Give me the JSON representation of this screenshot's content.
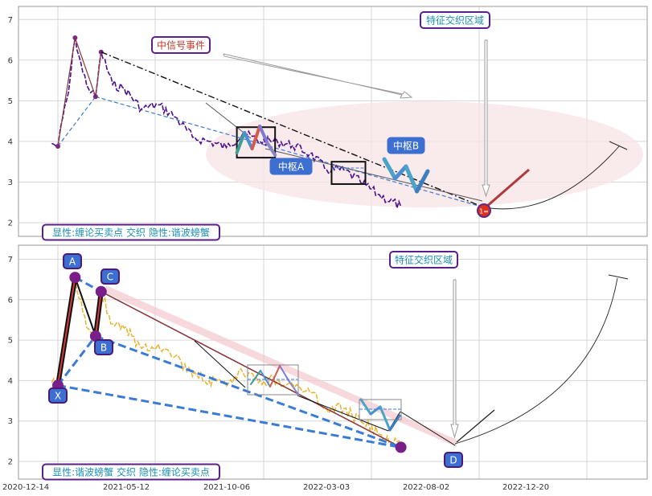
{
  "chart_data": [
    {
      "type": "line",
      "panel": "top",
      "ylim": [
        1.6,
        7.35
      ],
      "yticks": [
        "2",
        "3",
        "4",
        "5",
        "6",
        "7"
      ],
      "grid": true,
      "annotations": {
        "signal_event": "中信号事件",
        "feature_zone": "特征交织区域",
        "zhongshu_a": "中枢A",
        "zhongshu_b": "中枢B",
        "marker": "1=",
        "legend": "显性:缠论买卖点 交织 隐性:谐波螃蟹"
      },
      "price_series": [
        [
          "2020-12-21",
          3.95
        ],
        [
          "2021-01-01",
          3.88
        ],
        [
          "2021-01-10",
          4.6
        ],
        [
          "2021-01-20",
          5.2
        ],
        [
          "2021-02-01",
          6.55
        ],
        [
          "2021-02-15",
          5.7
        ],
        [
          "2021-03-01",
          5.2
        ],
        [
          "2021-03-10",
          5.1
        ],
        [
          "2021-03-20",
          6.2
        ],
        [
          "2021-04-10",
          5.4
        ],
        [
          "2021-05-01",
          5.3
        ],
        [
          "2021-06-01",
          4.8
        ],
        [
          "2021-07-01",
          4.9
        ],
        [
          "2021-08-01",
          4.6
        ],
        [
          "2021-09-01",
          4.1
        ],
        [
          "2021-10-01",
          4.0
        ],
        [
          "2021-11-01",
          3.85
        ],
        [
          "2021-12-01",
          4.2
        ],
        [
          "2022-01-01",
          4.0
        ],
        [
          "2022-02-01",
          4.0
        ],
        [
          "2022-03-01",
          3.9
        ],
        [
          "2022-04-01",
          3.7
        ],
        [
          "2022-05-01",
          3.3
        ],
        [
          "2022-06-01",
          3.3
        ],
        [
          "2022-07-01",
          3.0
        ],
        [
          "2022-08-01",
          2.7
        ],
        [
          "2022-09-12",
          2.4
        ]
      ],
      "zhongshu_a": {
        "from": "2021-11-20",
        "to": "2022-01-28",
        "low": 3.6,
        "high": 4.35
      },
      "zhongshu_b": {
        "from": "2022-05-10",
        "to": "2022-07-10",
        "low": 2.95,
        "high": 3.5
      }
    },
    {
      "type": "line",
      "panel": "bottom",
      "ylim": [
        1.6,
        7.35
      ],
      "yticks": [
        "2",
        "3",
        "4",
        "5",
        "6",
        "7"
      ],
      "xticks": [
        "2020-12-14",
        "2021-05-12",
        "2021-10-06",
        "2022-03-03",
        "2022-08-02",
        "2022-12-20"
      ],
      "grid": true,
      "annotations": {
        "feature_zone": "特征交织区域",
        "legend": "显性:谐波螃蟹 交织 隐性:缠论买卖点"
      },
      "harmonic_points": [
        {
          "label": "X",
          "date": "2021-01-01",
          "value": 3.88
        },
        {
          "label": "A",
          "date": "2021-02-01",
          "value": 6.55
        },
        {
          "label": "B",
          "date": "2021-03-10",
          "value": 5.1
        },
        {
          "label": "C",
          "date": "2021-03-20",
          "value": 6.2
        },
        {
          "label": "D",
          "date": "2022-09-12",
          "value": 2.35
        }
      ]
    }
  ]
}
